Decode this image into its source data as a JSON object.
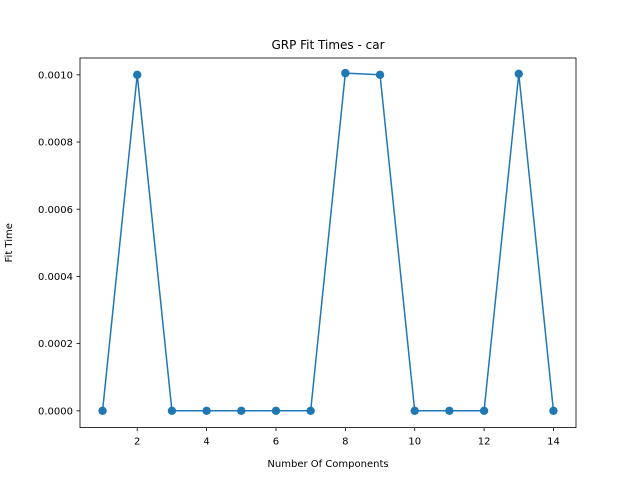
{
  "chart_data": {
    "type": "line",
    "title": "GRP Fit Times - car",
    "xlabel": "Number Of Components",
    "ylabel": "Fit Time",
    "x": [
      1,
      2,
      3,
      4,
      5,
      6,
      7,
      8,
      9,
      10,
      11,
      12,
      13,
      14
    ],
    "series": [
      {
        "values": [
          0.0,
          0.001,
          0.0,
          0.0,
          0.0,
          0.0,
          0.0,
          0.001005,
          0.001,
          0.0,
          0.0,
          0.0,
          0.001003,
          0.0
        ],
        "color": "#1f77b4",
        "marker": "circle"
      }
    ],
    "xlim": [
      0.35,
      14.65
    ],
    "ylim": [
      -5e-05,
      0.00105
    ],
    "xticks": [
      2,
      4,
      6,
      8,
      10,
      12,
      14
    ],
    "xtick_labels": [
      "2",
      "4",
      "6",
      "8",
      "10",
      "12",
      "14"
    ],
    "yticks": [
      0.0,
      0.0002,
      0.0004,
      0.0006,
      0.0008,
      0.001
    ],
    "ytick_labels": [
      "0.0000",
      "0.0002",
      "0.0004",
      "0.0006",
      "0.0008",
      "0.0010"
    ],
    "grid": false,
    "legend": "none"
  }
}
